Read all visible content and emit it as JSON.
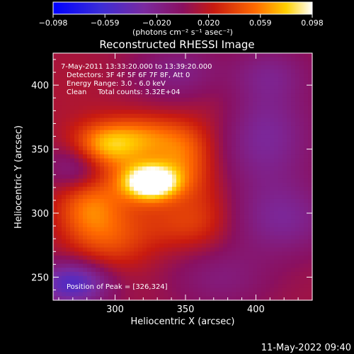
{
  "chart_data": {
    "type": "heatmap",
    "title": "Reconstructed RHESSI Image",
    "xlabel": "Heliocentric X (arcsec)",
    "ylabel": "Heliocentric Y (arcsec)",
    "xlim": [
      256,
      440
    ],
    "ylim": [
      232,
      425
    ],
    "xticks": [
      {
        "value": 300,
        "label": "300"
      },
      {
        "value": 350,
        "label": "350"
      },
      {
        "value": 400,
        "label": "400"
      }
    ],
    "yticks": [
      {
        "value": 250,
        "label": "250"
      },
      {
        "value": 300,
        "label": "300"
      },
      {
        "value": 350,
        "label": "350"
      },
      {
        "value": 400,
        "label": "400"
      }
    ],
    "colorbar": {
      "tick_labels": [
        "−0.098",
        "−0.059",
        "−0.020",
        "0.020",
        "0.059",
        "0.098"
      ],
      "range": [
        -0.098,
        0.098
      ],
      "units_label": "(photons cm⁻² s⁻¹ asec⁻²)"
    },
    "annotations": [
      "7-May-2011 13:33:20.000 to 13:39:20.000",
      "Detectors: 3F 4F 5F 6F 7F 8F, Att 0",
      "Energy Range: 3.0 - 6.0 keV",
      "Clean     Total counts: 3.32E+04",
      "Position of Peak = [326,324]"
    ],
    "peak": {
      "x": 326,
      "y": 324
    },
    "grid": false,
    "sources": [
      {
        "x": 326,
        "y": 324,
        "amp": 0.095,
        "sx": 13,
        "sy": 9
      },
      {
        "x": 315,
        "y": 330,
        "amp": 0.035,
        "sx": 30,
        "sy": 20
      },
      {
        "x": 290,
        "y": 352,
        "amp": 0.045,
        "sx": 16,
        "sy": 12
      },
      {
        "x": 318,
        "y": 360,
        "amp": 0.04,
        "sx": 22,
        "sy": 12
      },
      {
        "x": 350,
        "y": 345,
        "amp": 0.03,
        "sx": 14,
        "sy": 18
      },
      {
        "x": 280,
        "y": 305,
        "amp": 0.04,
        "sx": 16,
        "sy": 20
      },
      {
        "x": 300,
        "y": 280,
        "amp": 0.03,
        "sx": 20,
        "sy": 18
      },
      {
        "x": 365,
        "y": 300,
        "amp": 0.015,
        "sx": 14,
        "sy": 20
      },
      {
        "x": 345,
        "y": 290,
        "amp": 0.02,
        "sx": 18,
        "sy": 14
      },
      {
        "x": 270,
        "y": 395,
        "amp": 0.005,
        "sx": 25,
        "sy": 25
      },
      {
        "x": 375,
        "y": 380,
        "amp": 0.01,
        "sx": 16,
        "sy": 25
      },
      {
        "x": 275,
        "y": 335,
        "amp": -0.045,
        "sx": 16,
        "sy": 14
      },
      {
        "x": 270,
        "y": 245,
        "amp": -0.06,
        "sx": 18,
        "sy": 12
      },
      {
        "x": 405,
        "y": 360,
        "amp": -0.035,
        "sx": 25,
        "sy": 30
      },
      {
        "x": 420,
        "y": 295,
        "amp": -0.03,
        "sx": 25,
        "sy": 20
      },
      {
        "x": 375,
        "y": 250,
        "amp": -0.02,
        "sx": 25,
        "sy": 18
      },
      {
        "x": 345,
        "y": 410,
        "amp": -0.025,
        "sx": 22,
        "sy": 15
      },
      {
        "x": 410,
        "y": 410,
        "amp": -0.02,
        "sx": 20,
        "sy": 15
      }
    ]
  },
  "footer": {
    "timestamp": "11-May-2022 09:40"
  }
}
